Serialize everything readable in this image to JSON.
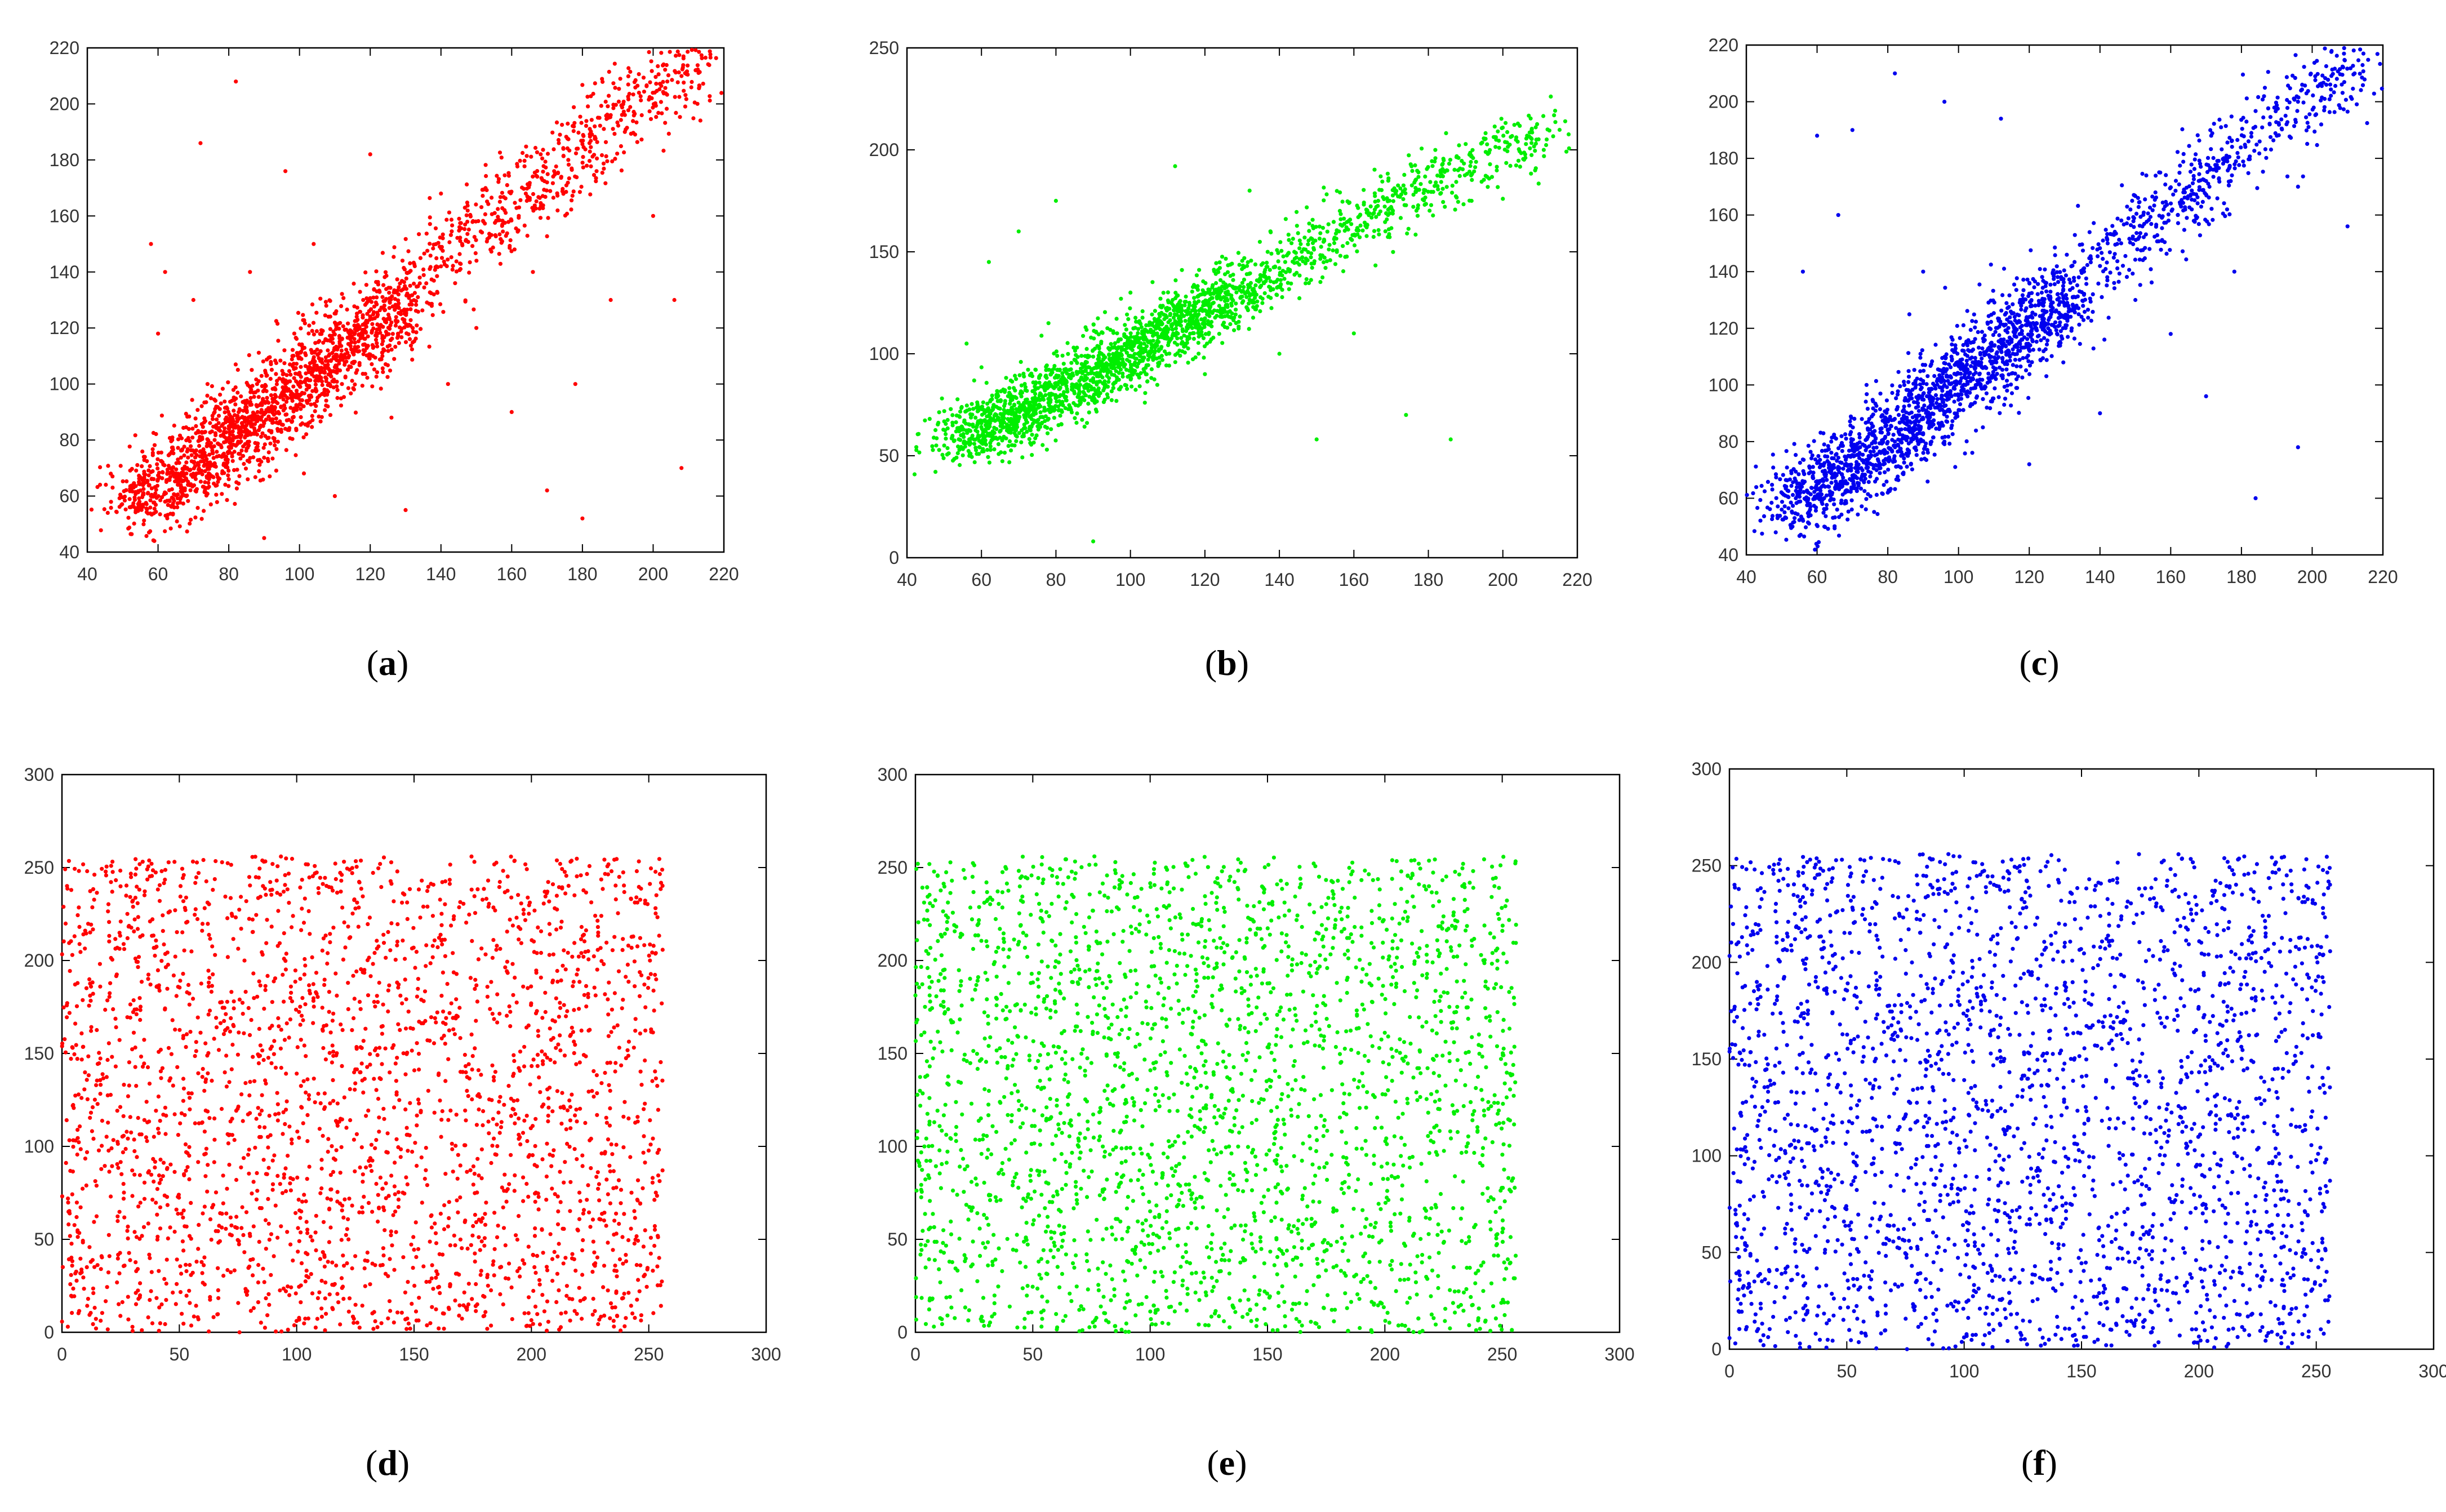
{
  "chart_data": [
    {
      "type": "scatter",
      "panel": "a",
      "caption": "a",
      "color": "#ff0000",
      "xlim": [
        40,
        220
      ],
      "ylim": [
        40,
        220
      ],
      "xticks": [
        40,
        60,
        80,
        100,
        120,
        140,
        160,
        180,
        200,
        220
      ],
      "yticks": [
        40,
        60,
        80,
        100,
        120,
        140,
        160,
        180,
        200,
        220
      ],
      "points": [
        [
          52,
          56
        ],
        [
          55,
          62
        ],
        [
          58,
          60
        ],
        [
          60,
          66
        ],
        [
          62,
          58
        ],
        [
          64,
          70
        ],
        [
          66,
          64
        ],
        [
          68,
          72
        ],
        [
          70,
          68
        ],
        [
          72,
          76
        ],
        [
          74,
          70
        ],
        [
          76,
          80
        ],
        [
          78,
          74
        ],
        [
          80,
          84
        ],
        [
          82,
          78
        ],
        [
          84,
          88
        ],
        [
          86,
          82
        ],
        [
          88,
          92
        ],
        [
          90,
          86
        ],
        [
          92,
          96
        ],
        [
          94,
          90
        ],
        [
          96,
          100
        ],
        [
          98,
          94
        ],
        [
          100,
          104
        ],
        [
          102,
          98
        ],
        [
          104,
          108
        ],
        [
          106,
          102
        ],
        [
          108,
          112
        ],
        [
          110,
          106
        ],
        [
          112,
          116
        ],
        [
          114,
          110
        ],
        [
          116,
          120
        ],
        [
          118,
          114
        ],
        [
          120,
          124
        ],
        [
          122,
          118
        ],
        [
          124,
          128
        ],
        [
          126,
          122
        ],
        [
          128,
          132
        ],
        [
          130,
          126
        ],
        [
          134,
          138
        ],
        [
          140,
          142
        ],
        [
          146,
          150
        ],
        [
          152,
          158
        ],
        [
          158,
          162
        ],
        [
          164,
          168
        ],
        [
          170,
          172
        ],
        [
          176,
          180
        ],
        [
          182,
          186
        ],
        [
          188,
          196
        ],
        [
          196,
          204
        ],
        [
          204,
          208
        ],
        [
          212,
          212
        ],
        [
          58,
          150
        ],
        [
          62,
          140
        ],
        [
          72,
          186
        ],
        [
          82,
          208
        ],
        [
          96,
          176
        ],
        [
          120,
          182
        ],
        [
          140,
          168
        ],
        [
          178,
          100
        ],
        [
          188,
          130
        ],
        [
          208,
          70
        ],
        [
          180,
          52
        ],
        [
          130,
          55
        ],
        [
          90,
          45
        ],
        [
          60,
          118
        ],
        [
          70,
          130
        ],
        [
          110,
          60
        ],
        [
          160,
          90
        ],
        [
          150,
          120
        ],
        [
          200,
          160
        ],
        [
          86,
          140
        ],
        [
          104,
          150
        ],
        [
          126,
          88
        ],
        [
          142,
          100
        ],
        [
          166,
          140
        ],
        [
          74,
          100
        ],
        [
          56,
          74
        ],
        [
          68,
          60
        ],
        [
          80,
          66
        ],
        [
          96,
          84
        ],
        [
          112,
          100
        ],
        [
          118,
          130
        ],
        [
          124,
          112
        ],
        [
          132,
          120
        ],
        [
          98,
          110
        ],
        [
          88,
          100
        ],
        [
          76,
          90
        ],
        [
          64,
          80
        ],
        [
          108,
          92
        ],
        [
          116,
          104
        ],
        [
          138,
          132
        ],
        [
          144,
          136
        ],
        [
          154,
          148
        ],
        [
          162,
          160
        ],
        [
          172,
          176
        ],
        [
          184,
          176
        ],
        [
          192,
          190
        ],
        [
          206,
          130
        ],
        [
          170,
          62
        ]
      ]
    },
    {
      "type": "scatter",
      "panel": "b",
      "caption": "b",
      "color": "#00ee00",
      "xlim": [
        40,
        220
      ],
      "ylim": [
        0,
        250
      ],
      "xticks": [
        40,
        60,
        80,
        100,
        120,
        140,
        160,
        180,
        200,
        220
      ],
      "yticks": [
        0,
        50,
        100,
        150,
        200,
        250
      ],
      "points": [
        [
          50,
          55
        ],
        [
          54,
          62
        ],
        [
          58,
          58
        ],
        [
          60,
          66
        ],
        [
          62,
          60
        ],
        [
          64,
          70
        ],
        [
          66,
          64
        ],
        [
          68,
          72
        ],
        [
          70,
          68
        ],
        [
          72,
          76
        ],
        [
          74,
          70
        ],
        [
          76,
          80
        ],
        [
          78,
          76
        ],
        [
          80,
          84
        ],
        [
          82,
          80
        ],
        [
          84,
          88
        ],
        [
          86,
          84
        ],
        [
          88,
          92
        ],
        [
          90,
          88
        ],
        [
          92,
          96
        ],
        [
          94,
          92
        ],
        [
          96,
          100
        ],
        [
          98,
          96
        ],
        [
          100,
          104
        ],
        [
          102,
          100
        ],
        [
          104,
          108
        ],
        [
          106,
          104
        ],
        [
          108,
          112
        ],
        [
          110,
          108
        ],
        [
          112,
          116
        ],
        [
          114,
          112
        ],
        [
          116,
          120
        ],
        [
          118,
          116
        ],
        [
          120,
          124
        ],
        [
          122,
          120
        ],
        [
          124,
          128
        ],
        [
          126,
          124
        ],
        [
          128,
          132
        ],
        [
          130,
          128
        ],
        [
          134,
          136
        ],
        [
          140,
          142
        ],
        [
          146,
          150
        ],
        [
          152,
          156
        ],
        [
          158,
          162
        ],
        [
          164,
          168
        ],
        [
          170,
          172
        ],
        [
          176,
          178
        ],
        [
          182,
          184
        ],
        [
          188,
          190
        ],
        [
          196,
          198
        ],
        [
          204,
          204
        ],
        [
          212,
          210
        ],
        [
          56,
          105
        ],
        [
          62,
          145
        ],
        [
          70,
          160
        ],
        [
          80,
          175
        ],
        [
          90,
          8
        ],
        [
          112,
          192
        ],
        [
          132,
          180
        ],
        [
          150,
          58
        ],
        [
          160,
          110
        ],
        [
          174,
          70
        ],
        [
          186,
          58
        ],
        [
          200,
          176
        ],
        [
          78,
          115
        ],
        [
          100,
          130
        ],
        [
          120,
          90
        ],
        [
          140,
          100
        ],
        [
          96,
          86
        ],
        [
          88,
          96
        ],
        [
          76,
          84
        ],
        [
          64,
          74
        ],
        [
          108,
          116
        ],
        [
          118,
          128
        ],
        [
          136,
          140
        ],
        [
          144,
          150
        ],
        [
          156,
          160
        ],
        [
          166,
          172
        ],
        [
          184,
          190
        ],
        [
          192,
          196
        ]
      ]
    },
    {
      "type": "scatter",
      "panel": "c",
      "caption": "c",
      "color": "#0000ee",
      "xlim": [
        40,
        220
      ],
      "ylim": [
        40,
        220
      ],
      "xticks": [
        40,
        60,
        80,
        100,
        120,
        140,
        160,
        180,
        200,
        220
      ],
      "yticks": [
        40,
        60,
        80,
        100,
        120,
        140,
        160,
        180,
        200,
        220
      ],
      "points": [
        [
          50,
          56
        ],
        [
          54,
          60
        ],
        [
          58,
          58
        ],
        [
          60,
          66
        ],
        [
          62,
          60
        ],
        [
          64,
          70
        ],
        [
          66,
          64
        ],
        [
          68,
          72
        ],
        [
          70,
          68
        ],
        [
          72,
          76
        ],
        [
          74,
          72
        ],
        [
          76,
          80
        ],
        [
          78,
          76
        ],
        [
          80,
          84
        ],
        [
          82,
          80
        ],
        [
          84,
          88
        ],
        [
          86,
          84
        ],
        [
          88,
          92
        ],
        [
          90,
          88
        ],
        [
          92,
          96
        ],
        [
          94,
          92
        ],
        [
          96,
          100
        ],
        [
          98,
          96
        ],
        [
          100,
          104
        ],
        [
          102,
          100
        ],
        [
          104,
          108
        ],
        [
          106,
          104
        ],
        [
          108,
          112
        ],
        [
          110,
          108
        ],
        [
          112,
          116
        ],
        [
          114,
          112
        ],
        [
          116,
          120
        ],
        [
          118,
          116
        ],
        [
          120,
          124
        ],
        [
          122,
          120
        ],
        [
          124,
          128
        ],
        [
          126,
          124
        ],
        [
          128,
          132
        ],
        [
          130,
          128
        ],
        [
          134,
          138
        ],
        [
          140,
          142
        ],
        [
          146,
          150
        ],
        [
          152,
          156
        ],
        [
          158,
          162
        ],
        [
          164,
          168
        ],
        [
          170,
          172
        ],
        [
          176,
          180
        ],
        [
          182,
          186
        ],
        [
          188,
          192
        ],
        [
          196,
          200
        ],
        [
          204,
          206
        ],
        [
          212,
          210
        ],
        [
          60,
          188
        ],
        [
          70,
          190
        ],
        [
          82,
          210
        ],
        [
          96,
          200
        ],
        [
          112,
          194
        ],
        [
          150,
          130
        ],
        [
          170,
          96
        ],
        [
          184,
          60
        ],
        [
          196,
          78
        ],
        [
          210,
          156
        ],
        [
          56,
          140
        ],
        [
          66,
          160
        ],
        [
          90,
          140
        ],
        [
          120,
          72
        ],
        [
          140,
          90
        ],
        [
          160,
          118
        ],
        [
          178,
          140
        ],
        [
          196,
          170
        ],
        [
          74,
          100
        ],
        [
          80,
          62
        ],
        [
          96,
          80
        ],
        [
          108,
          92
        ],
        [
          118,
          130
        ],
        [
          132,
          120
        ],
        [
          98,
          110
        ],
        [
          88,
          100
        ],
        [
          64,
          80
        ],
        [
          116,
          104
        ],
        [
          138,
          132
        ],
        [
          144,
          136
        ],
        [
          154,
          148
        ],
        [
          162,
          160
        ],
        [
          172,
          176
        ],
        [
          190,
          188
        ]
      ]
    },
    {
      "type": "scatter",
      "panel": "d",
      "caption": "d",
      "color": "#ff0000",
      "xlim": [
        0,
        300
      ],
      "ylim": [
        0,
        300
      ],
      "xticks": [
        0,
        50,
        100,
        150,
        200,
        250,
        300
      ],
      "yticks": [
        0,
        50,
        100,
        150,
        200,
        250,
        300
      ],
      "points": "uniform-256"
    },
    {
      "type": "scatter",
      "panel": "e",
      "caption": "e",
      "color": "#00ee00",
      "xlim": [
        0,
        300
      ],
      "ylim": [
        0,
        300
      ],
      "xticks": [
        0,
        50,
        100,
        150,
        200,
        250,
        300
      ],
      "yticks": [
        0,
        50,
        100,
        150,
        200,
        250,
        300
      ],
      "points": "uniform-256"
    },
    {
      "type": "scatter",
      "panel": "f",
      "caption": "f",
      "color": "#0000ee",
      "xlim": [
        0,
        300
      ],
      "ylim": [
        0,
        300
      ],
      "xticks": [
        0,
        50,
        100,
        150,
        200,
        250,
        300
      ],
      "yticks": [
        0,
        50,
        100,
        150,
        200,
        250,
        300
      ],
      "points": "uniform-256"
    }
  ]
}
